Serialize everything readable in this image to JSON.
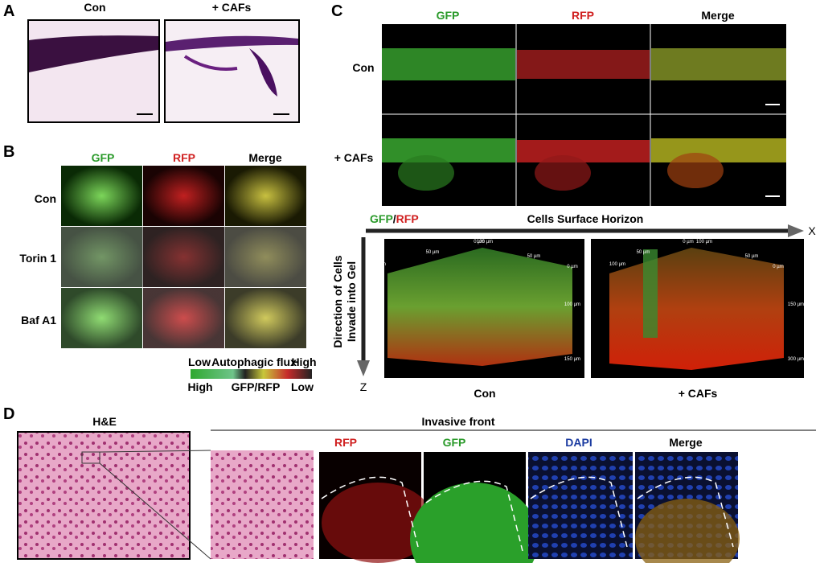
{
  "panels": {
    "a": {
      "label": "A",
      "columns": [
        "Con",
        "+ CAFs"
      ]
    },
    "b": {
      "label": "B",
      "channels": [
        "GFP",
        "RFP",
        "Merge"
      ],
      "rows": [
        "Con",
        "Torin 1",
        "Baf A1"
      ],
      "legend": {
        "top": [
          "Low",
          "Autophagic flux",
          "High"
        ],
        "bottom": [
          "High",
          "GFP/RFP",
          "Low"
        ]
      }
    },
    "c": {
      "label": "C",
      "channels": [
        "GFP",
        "RFP",
        "Merge"
      ],
      "rows": [
        "Con",
        "+ CAFs"
      ],
      "reconstruction": {
        "channel_gfp": "GFP",
        "separator": "/",
        "channel_rfp": "RFP",
        "x_title": "Cells Surface Horizon",
        "x_axis": "X",
        "z_title": [
          "Direction of Cells",
          "Invade into Gel"
        ],
        "z_axis": "Z",
        "conditions": [
          "Con",
          "+ CAFs"
        ],
        "scale_labels": [
          [
            "0 µm",
            "100 µm",
            "50 µm",
            "50 µm",
            "0 µm",
            "100 µm",
            "100 µm",
            "150 µm"
          ],
          [
            "0 µm",
            "100 µm",
            "50 µm",
            "50 µm",
            "0 µm",
            "100 µm",
            "150 µm",
            "300 µm"
          ]
        ]
      }
    },
    "d": {
      "label": "D",
      "overview": "H&E",
      "invasive_front": "Invasive front",
      "channels": [
        "RFP",
        "GFP",
        "DAPI",
        "Merge"
      ]
    }
  }
}
